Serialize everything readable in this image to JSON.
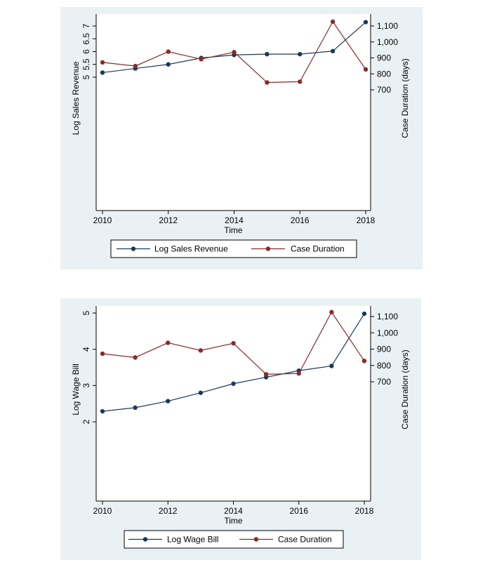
{
  "chart_data": [
    {
      "type": "line",
      "title": "",
      "xlabel": "Time",
      "ylabel_left": "Log Sales Revenue",
      "ylabel_right": "Case Duration (days)",
      "x": [
        2010,
        2011,
        2012,
        2013,
        2014,
        2015,
        2016,
        2017,
        2018
      ],
      "xticks": [
        "2010",
        "2012",
        "2014",
        "2016",
        "2018"
      ],
      "left_ticks": [
        "5",
        "5.5",
        "6",
        "6.5",
        "7"
      ],
      "right_ticks": [
        "700",
        "800",
        "900",
        "1,000",
        "1,100"
      ],
      "series": [
        {
          "name": "Log Sales Revenue",
          "axis": "left",
          "color": "#1a3a5c",
          "values": [
            5.18,
            5.34,
            5.5,
            5.75,
            5.87,
            5.9,
            5.9,
            6.02,
            7.15
          ]
        },
        {
          "name": "Case Duration",
          "axis": "right",
          "color": "#8b2a2a",
          "values": [
            872,
            849,
            939,
            892,
            936,
            746,
            751,
            1127,
            828
          ]
        }
      ],
      "legend_position": "bottom"
    },
    {
      "type": "line",
      "title": "",
      "xlabel": "Time",
      "ylabel_left": "Log Wage Bill",
      "ylabel_right": "Case Duration (days)",
      "x": [
        2010,
        2011,
        2012,
        2013,
        2014,
        2015,
        2016,
        2017,
        2018
      ],
      "xticks": [
        "2010",
        "2012",
        "2014",
        "2016",
        "2018"
      ],
      "left_ticks": [
        "2",
        "3",
        "4",
        "5"
      ],
      "right_ticks": [
        "700",
        "800",
        "900",
        "1,000",
        "1,100"
      ],
      "series": [
        {
          "name": "Log Wage Bill",
          "axis": "left",
          "color": "#1a3a5c",
          "values": [
            2.29,
            2.39,
            2.57,
            2.8,
            3.05,
            3.23,
            3.41,
            3.54,
            4.98
          ]
        },
        {
          "name": "Case Duration",
          "axis": "right",
          "color": "#8b2a2a",
          "values": [
            872,
            849,
            939,
            892,
            936,
            746,
            751,
            1127,
            828
          ]
        }
      ],
      "legend_position": "bottom"
    }
  ]
}
